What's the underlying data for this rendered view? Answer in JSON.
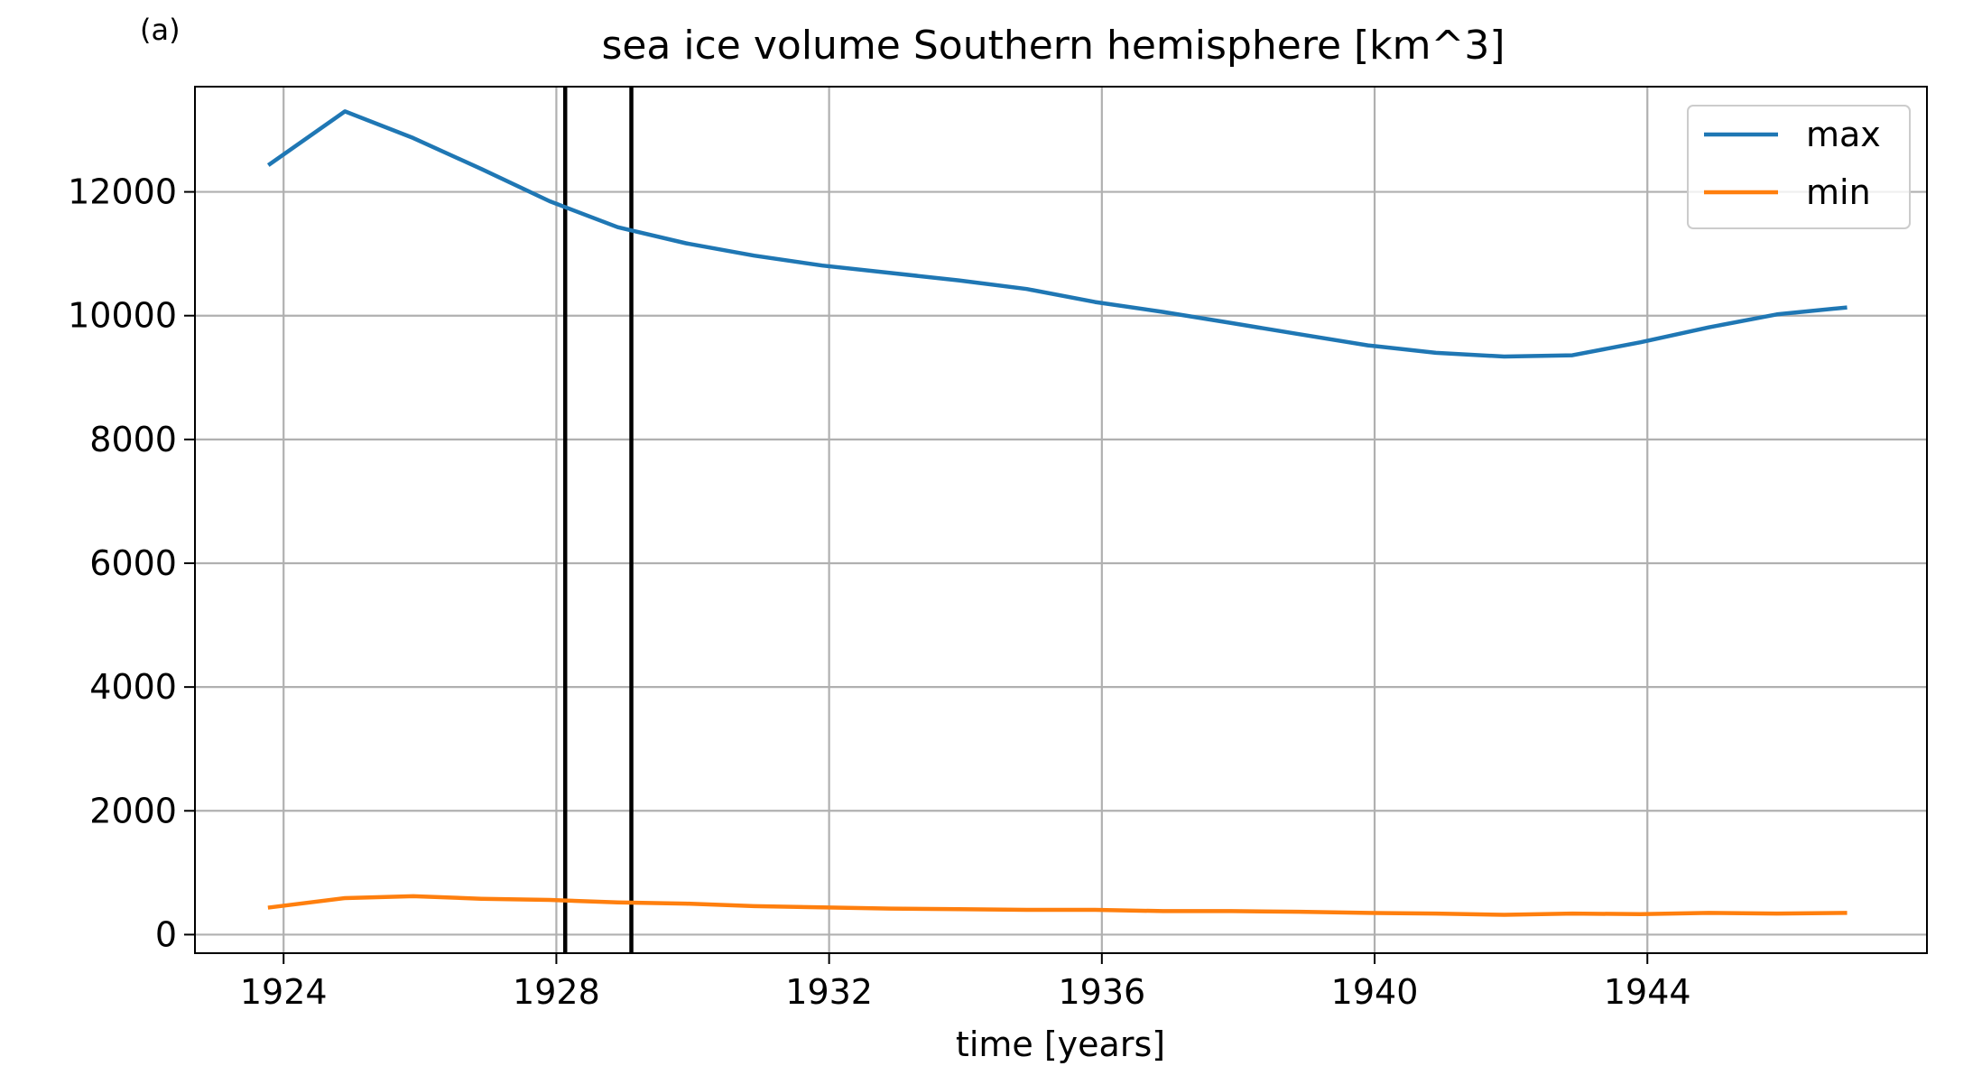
{
  "panel_label": "(a)",
  "chart_data": {
    "type": "line",
    "title": "sea ice volume Southern hemisphere [km^3]",
    "xlabel": "time [years]",
    "ylabel": "",
    "xlim": [
      1922.7,
      1948.1
    ],
    "ylim": [
      -300,
      13700
    ],
    "x_ticks": [
      1924,
      1928,
      1932,
      1936,
      1940,
      1944
    ],
    "y_ticks": [
      0,
      2000,
      4000,
      6000,
      8000,
      10000,
      12000
    ],
    "grid": true,
    "legend_position": "upper right",
    "vertical_markers": [
      1928.13,
      1929.1
    ],
    "series": [
      {
        "name": "max",
        "color": "#1f77b4",
        "x": [
          1923.8,
          1924.9,
          1925.9,
          1926.9,
          1927.9,
          1928.9,
          1929.9,
          1930.9,
          1931.9,
          1932.9,
          1933.9,
          1934.9,
          1935.9,
          1936.9,
          1937.9,
          1938.9,
          1939.9,
          1940.9,
          1941.9,
          1942.9,
          1943.9,
          1944.9,
          1945.9,
          1946.9
        ],
        "values": [
          12450,
          13300,
          12870,
          12370,
          11850,
          11430,
          11170,
          10970,
          10810,
          10690,
          10570,
          10430,
          10220,
          10060,
          9880,
          9700,
          9520,
          9400,
          9340,
          9360,
          9570,
          9810,
          10020,
          10130
        ]
      },
      {
        "name": "min",
        "color": "#ff7f0e",
        "x": [
          1923.8,
          1924.9,
          1925.9,
          1926.9,
          1927.9,
          1928.9,
          1929.9,
          1930.9,
          1931.9,
          1932.9,
          1933.9,
          1934.9,
          1935.9,
          1936.9,
          1937.9,
          1938.9,
          1939.9,
          1940.9,
          1941.9,
          1942.9,
          1943.9,
          1944.9,
          1945.9,
          1946.9
        ],
        "values": [
          440,
          590,
          620,
          580,
          560,
          520,
          500,
          460,
          440,
          420,
          410,
          400,
          400,
          380,
          380,
          370,
          350,
          340,
          320,
          340,
          330,
          350,
          340,
          350
        ]
      }
    ]
  }
}
